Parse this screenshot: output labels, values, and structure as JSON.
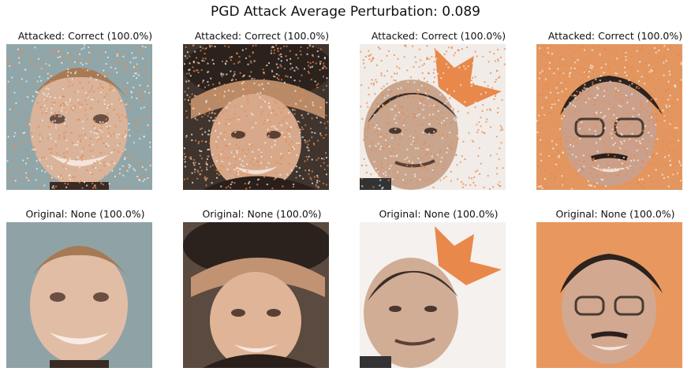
{
  "figure": {
    "title": "PGD Attack Average Perturbation: 0.089"
  },
  "chart_data": {
    "type": "image-grid",
    "title": "PGD Attack Average Perturbation: 0.089",
    "average_perturbation": 0.089,
    "rows": [
      {
        "row": "attacked",
        "panels": [
          {
            "label": "Attacked: Correct (100.0%)",
            "prediction": "Correct",
            "confidence": 100.0
          },
          {
            "label": "Attacked: Correct (100.0%)",
            "prediction": "Correct",
            "confidence": 100.0
          },
          {
            "label": "Attacked: Correct (100.0%)",
            "prediction": "Correct",
            "confidence": 100.0
          },
          {
            "label": "Attacked: Correct (100.0%)",
            "prediction": "Correct",
            "confidence": 100.0
          }
        ]
      },
      {
        "row": "original",
        "panels": [
          {
            "label": "Original: None (100.0%)",
            "prediction": "None",
            "confidence": 100.0
          },
          {
            "label": "Original: None (100.0%)",
            "prediction": "None",
            "confidence": 100.0
          },
          {
            "label": "Original: None (100.0%)",
            "prediction": "None",
            "confidence": 100.0
          },
          {
            "label": "Original: None (100.0%)",
            "prediction": "None",
            "confidence": 100.0
          }
        ]
      }
    ]
  },
  "colors": {
    "noise_orange": "#e8884a",
    "bg1": "#8aa3a8",
    "bg2": "#3b2f2a",
    "bg3": "#f1ece8",
    "bg4": "#e39660"
  }
}
